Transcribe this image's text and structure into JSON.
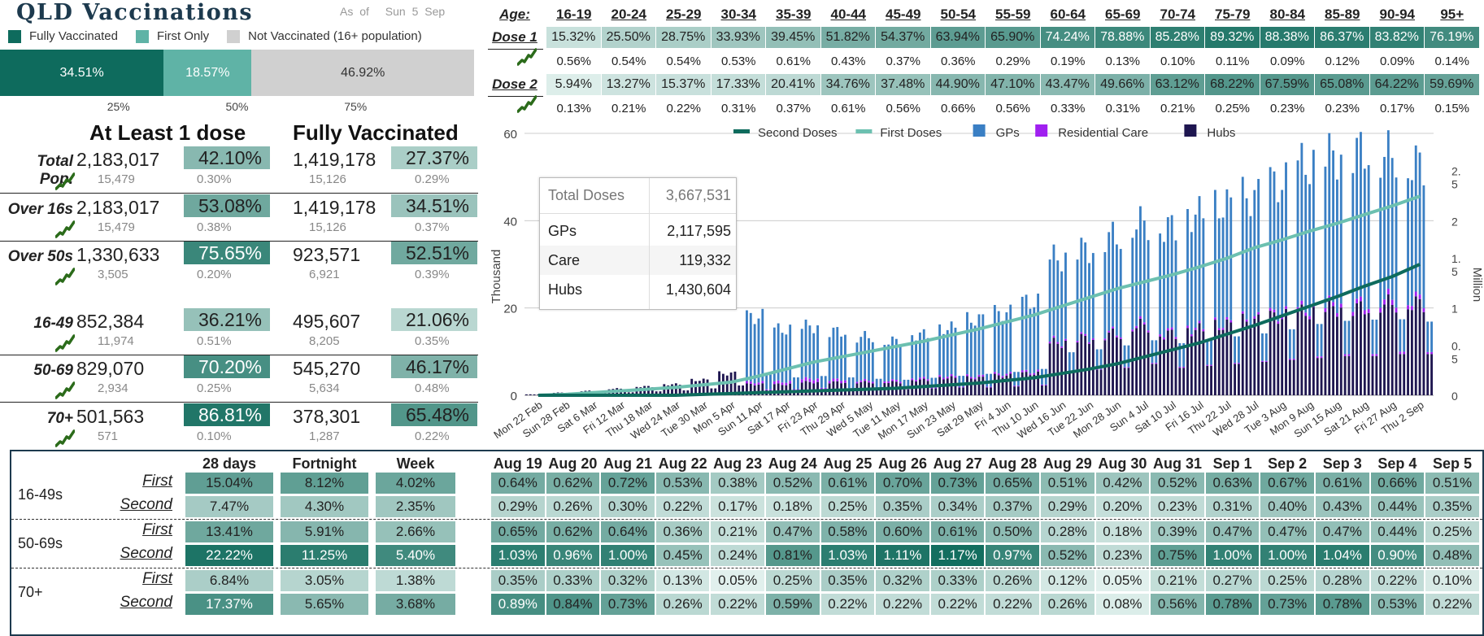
{
  "title": "QLD Vaccinations",
  "as_of_label": "As of",
  "as_of_date": "Sun 5 Sep",
  "legend": [
    {
      "label": "Fully Vaccinated",
      "color": "#0e6b5d"
    },
    {
      "label": "First Only",
      "color": "#5fb3a6"
    },
    {
      "label": "Not Vaccinated (16+ population)",
      "color": "#d0d0d0"
    }
  ],
  "stacked_bar": {
    "segments": [
      {
        "label": "34.51%",
        "value": 34.51,
        "color": "#0e6b5d",
        "text_color": "#ffffff"
      },
      {
        "label": "18.57%",
        "value": 18.57,
        "color": "#5fb3a6",
        "text_color": "#ffffff"
      },
      {
        "label": "46.92%",
        "value": 46.92,
        "color": "#d0d0d0",
        "text_color": "#333333"
      }
    ],
    "ticks": [
      "25%",
      "50%",
      "75%"
    ]
  },
  "summary": {
    "header_at_least": "At Least 1 dose",
    "header_fully": "Fully Vaccinated",
    "rows": [
      {
        "label": "Total Pop.",
        "n1": "2,183,017",
        "p1": "42.10%",
        "p1_val": 42.1,
        "n2": "1,419,178",
        "p2": "27.37%",
        "p2_val": 27.37,
        "d1": "15,479",
        "dp1": "0.30%",
        "d2": "15,126",
        "dp2": "0.29%"
      },
      {
        "label": "Over 16s",
        "n1": "2,183,017",
        "p1": "53.08%",
        "p1_val": 53.08,
        "n2": "1,419,178",
        "p2": "34.51%",
        "p2_val": 34.51,
        "d1": "15,479",
        "dp1": "0.38%",
        "d2": "15,126",
        "dp2": "0.37%"
      },
      {
        "label": "Over 50s",
        "n1": "1,330,633",
        "p1": "75.65%",
        "p1_val": 75.65,
        "n2": "923,571",
        "p2": "52.51%",
        "p2_val": 52.51,
        "d1": "3,505",
        "dp1": "0.20%",
        "d2": "6,921",
        "dp2": "0.39%"
      },
      {
        "label": "16-49",
        "n1": "852,384",
        "p1": "36.21%",
        "p1_val": 36.21,
        "n2": "495,607",
        "p2": "21.06%",
        "p2_val": 21.06,
        "d1": "11,974",
        "dp1": "0.51%",
        "d2": "8,205",
        "dp2": "0.35%"
      },
      {
        "label": "50-69",
        "n1": "829,070",
        "p1": "70.20%",
        "p1_val": 70.2,
        "n2": "545,270",
        "p2": "46.17%",
        "p2_val": 46.17,
        "d1": "2,934",
        "dp1": "0.25%",
        "d2": "5,634",
        "dp2": "0.48%"
      },
      {
        "label": "70+",
        "n1": "501,563",
        "p1": "86.81%",
        "p1_val": 86.81,
        "n2": "378,301",
        "p2": "65.48%",
        "p2_val": 65.48,
        "d1": "571",
        "dp1": "0.10%",
        "d2": "1,287",
        "dp2": "0.22%"
      }
    ]
  },
  "age_table": {
    "age_label": "Age:",
    "ages": [
      "16-19",
      "20-24",
      "25-29",
      "30-34",
      "35-39",
      "40-44",
      "45-49",
      "50-54",
      "55-59",
      "60-64",
      "65-69",
      "70-74",
      "75-79",
      "80-84",
      "85-89",
      "90-94",
      "95+"
    ],
    "dose1_label": "Dose 1",
    "dose1": [
      "15.32%",
      "25.50%",
      "28.75%",
      "33.93%",
      "39.45%",
      "51.82%",
      "54.37%",
      "63.94%",
      "65.90%",
      "74.24%",
      "78.88%",
      "85.28%",
      "89.32%",
      "88.38%",
      "86.37%",
      "83.82%",
      "76.19%"
    ],
    "dose1_change": [
      "0.56%",
      "0.54%",
      "0.54%",
      "0.53%",
      "0.61%",
      "0.43%",
      "0.37%",
      "0.36%",
      "0.29%",
      "0.19%",
      "0.13%",
      "0.10%",
      "0.11%",
      "0.09%",
      "0.12%",
      "0.09%",
      "0.14%"
    ],
    "dose2_label": "Dose 2",
    "dose2": [
      "5.94%",
      "13.27%",
      "15.37%",
      "17.33%",
      "20.41%",
      "34.76%",
      "37.48%",
      "44.90%",
      "47.10%",
      "43.47%",
      "49.66%",
      "63.12%",
      "68.22%",
      "67.59%",
      "65.08%",
      "64.22%",
      "59.69%"
    ],
    "dose2_change": [
      "0.13%",
      "0.21%",
      "0.22%",
      "0.31%",
      "0.37%",
      "0.61%",
      "0.56%",
      "0.66%",
      "0.56%",
      "0.33%",
      "0.31%",
      "0.21%",
      "0.25%",
      "0.23%",
      "0.23%",
      "0.17%",
      "0.15%"
    ]
  },
  "tooltip": {
    "rows": [
      {
        "k": "Total Doses",
        "v": "3,667,531"
      },
      {
        "k": "GPs",
        "v": "2,117,595"
      },
      {
        "k": "Care",
        "v": "119,332"
      },
      {
        "k": "Hubs",
        "v": "1,430,604"
      }
    ]
  },
  "chart_data": {
    "type": "bar",
    "title": "",
    "ylabel": "Thousand",
    "y2label": "Million",
    "ylim": [
      0,
      60
    ],
    "y2lim": [
      0,
      3
    ],
    "yticks": [
      "0",
      "20",
      "40",
      "60"
    ],
    "y2ticks": [
      "0",
      "0.\n5",
      "1",
      "1.\n5",
      "2",
      "2.\n5"
    ],
    "legend": [
      {
        "name": "Second Doses",
        "color": "#0e6b5d",
        "kind": "line"
      },
      {
        "name": "First Doses",
        "color": "#6cc0b0",
        "kind": "line"
      },
      {
        "name": "GPs",
        "color": "#3a7fc4",
        "kind": "bar"
      },
      {
        "name": "Residential Care",
        "color": "#a020f0",
        "kind": "bar"
      },
      {
        "name": "Hubs",
        "color": "#1e1650",
        "kind": "bar"
      }
    ],
    "categories": [
      "Mon 22 Feb",
      "Sun 28 Feb",
      "Sat 6 Mar",
      "Fri 12 Mar",
      "Thu 18 Mar",
      "Wed 24 Mar",
      "Tue 30 Mar",
      "Mon 5 Apr",
      "Sun 11 Apr",
      "Sat 17 Apr",
      "Fri 23 Apr",
      "Thu 29 Apr",
      "Wed 5 May",
      "Tue 11 May",
      "Mon 17 May",
      "Sun 23 May",
      "Sat 29 May",
      "Fri 4 Jun",
      "Thu 10 Jun",
      "Wed 16 Jun",
      "Tue 22 Jun",
      "Mon 28 Jun",
      "Sun 4 Jul",
      "Sat 10 Jul",
      "Fri 16 Jul",
      "Thu 22 Jul",
      "Wed 28 Jul",
      "Tue 3 Aug",
      "Mon 9 Aug",
      "Sun 15 Aug",
      "Sat 21 Aug",
      "Fri 27 Aug",
      "Thu 2 Sep"
    ],
    "series": [
      {
        "name": "Hubs",
        "values": [
          0.2,
          0.6,
          1.0,
          1.5,
          2.0,
          2.5,
          3.5,
          5.0,
          2.5,
          2.5,
          3,
          3,
          3,
          3,
          3.5,
          4,
          4,
          4.5,
          5,
          12,
          13,
          14,
          16,
          14,
          15,
          16,
          17,
          18,
          19,
          20,
          20,
          21,
          21
        ]
      },
      {
        "name": "GPs",
        "values": [
          0,
          0,
          0,
          0,
          0,
          0,
          0,
          0,
          15,
          12,
          12,
          11,
          10,
          9,
          10,
          11,
          13,
          14,
          16,
          19,
          20,
          22,
          23,
          24,
          26,
          27,
          28,
          30,
          33,
          34,
          35,
          33,
          31
        ]
      },
      {
        "name": "Residential Care",
        "values": [
          0,
          0,
          0,
          0,
          0,
          0,
          0,
          0,
          0.5,
          0.6,
          0.8,
          0.6,
          0.4,
          0.4,
          0.4,
          0.4,
          0.4,
          0.4,
          0.4,
          0.4,
          0.4,
          0.4,
          0.5,
          0.5,
          0.5,
          0.5,
          0.5,
          0.6,
          0.8,
          0.9,
          1.0,
          1.2,
          1.0
        ]
      },
      {
        "name": "First Doses",
        "values": [
          0,
          0.01,
          0.03,
          0.05,
          0.07,
          0.09,
          0.12,
          0.15,
          0.22,
          0.3,
          0.38,
          0.44,
          0.5,
          0.56,
          0.62,
          0.69,
          0.76,
          0.84,
          0.92,
          1.02,
          1.12,
          1.22,
          1.3,
          1.38,
          1.47,
          1.57,
          1.69,
          1.78,
          1.88,
          1.97,
          2.07,
          2.17,
          2.28
        ]
      },
      {
        "name": "Second Doses",
        "values": [
          0,
          0,
          0,
          0,
          0,
          0,
          0.01,
          0.02,
          0.03,
          0.04,
          0.05,
          0.06,
          0.07,
          0.08,
          0.1,
          0.12,
          0.14,
          0.17,
          0.2,
          0.25,
          0.3,
          0.36,
          0.44,
          0.52,
          0.6,
          0.7,
          0.8,
          0.91,
          1.02,
          1.13,
          1.25,
          1.36,
          1.5
        ]
      }
    ]
  },
  "bottom_table": {
    "headers": [
      "28 days",
      "Fortnight",
      "Week",
      "Aug 19",
      "Aug 20",
      "Aug 21",
      "Aug 22",
      "Aug 23",
      "Aug 24",
      "Aug 25",
      "Aug 26",
      "Aug 27",
      "Aug 28",
      "Aug 29",
      "Aug 30",
      "Aug 31",
      "Sep 1",
      "Sep 2",
      "Sep 3",
      "Sep 4",
      "Sep 5"
    ],
    "groups": [
      {
        "label": "16-49s",
        "rows": [
          {
            "label": "First",
            "values": [
              "15.04%",
              "8.12%",
              "4.02%",
              "0.64%",
              "0.62%",
              "0.72%",
              "0.53%",
              "0.38%",
              "0.52%",
              "0.61%",
              "0.70%",
              "0.73%",
              "0.65%",
              "0.51%",
              "0.42%",
              "0.52%",
              "0.63%",
              "0.67%",
              "0.61%",
              "0.66%",
              "0.51%"
            ]
          },
          {
            "label": "Second",
            "values": [
              "7.47%",
              "4.30%",
              "2.35%",
              "0.29%",
              "0.26%",
              "0.30%",
              "0.22%",
              "0.17%",
              "0.18%",
              "0.25%",
              "0.35%",
              "0.34%",
              "0.37%",
              "0.29%",
              "0.20%",
              "0.23%",
              "0.31%",
              "0.40%",
              "0.43%",
              "0.44%",
              "0.35%"
            ]
          }
        ]
      },
      {
        "label": "50-69s",
        "rows": [
          {
            "label": "First",
            "values": [
              "13.41%",
              "5.91%",
              "2.66%",
              "0.65%",
              "0.62%",
              "0.64%",
              "0.36%",
              "0.21%",
              "0.47%",
              "0.58%",
              "0.60%",
              "0.61%",
              "0.50%",
              "0.28%",
              "0.18%",
              "0.39%",
              "0.47%",
              "0.47%",
              "0.47%",
              "0.44%",
              "0.25%"
            ]
          },
          {
            "label": "Second",
            "values": [
              "22.22%",
              "11.25%",
              "5.40%",
              "1.03%",
              "0.96%",
              "1.00%",
              "0.45%",
              "0.24%",
              "0.81%",
              "1.03%",
              "1.11%",
              "1.17%",
              "0.97%",
              "0.52%",
              "0.23%",
              "0.75%",
              "1.00%",
              "1.00%",
              "1.04%",
              "0.90%",
              "0.48%"
            ]
          }
        ]
      },
      {
        "label": "70+",
        "rows": [
          {
            "label": "First",
            "values": [
              "6.84%",
              "3.05%",
              "1.38%",
              "0.35%",
              "0.33%",
              "0.32%",
              "0.13%",
              "0.05%",
              "0.25%",
              "0.35%",
              "0.32%",
              "0.33%",
              "0.26%",
              "0.12%",
              "0.05%",
              "0.21%",
              "0.27%",
              "0.25%",
              "0.28%",
              "0.22%",
              "0.10%"
            ]
          },
          {
            "label": "Second",
            "values": [
              "17.37%",
              "5.65%",
              "3.68%",
              "0.89%",
              "0.84%",
              "0.73%",
              "0.26%",
              "0.22%",
              "0.59%",
              "0.22%",
              "0.22%",
              "0.22%",
              "0.22%",
              "0.26%",
              "0.08%",
              "0.56%",
              "0.78%",
              "0.73%",
              "0.78%",
              "0.53%",
              "0.22%"
            ]
          }
        ]
      }
    ]
  }
}
